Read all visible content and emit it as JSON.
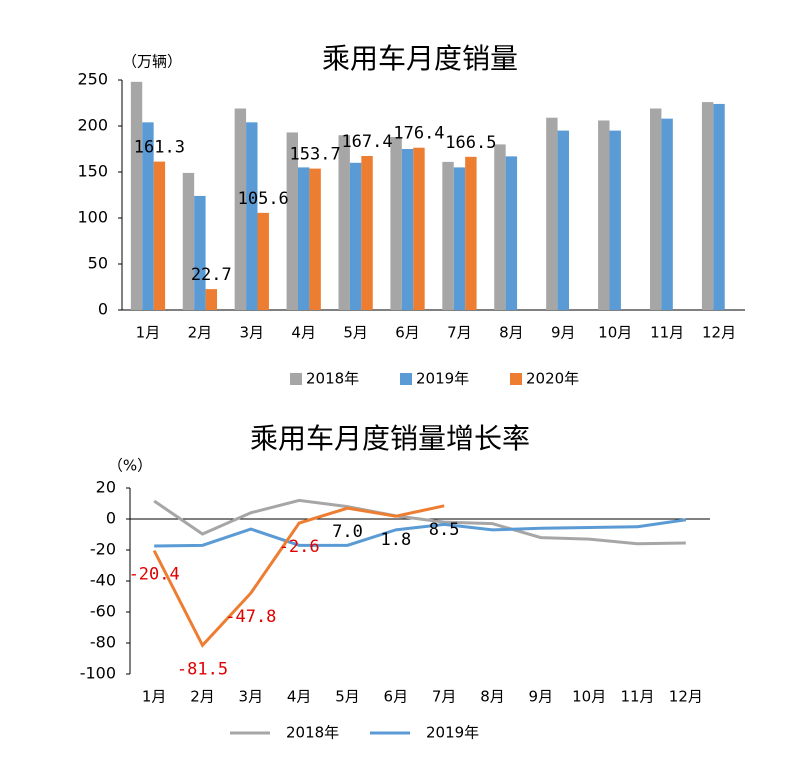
{
  "chart_data": [
    {
      "type": "bar",
      "title": "乘用车月度销量",
      "y_label": "（万辆）",
      "categories": [
        "1月",
        "2月",
        "3月",
        "4月",
        "5月",
        "6月",
        "7月",
        "8月",
        "9月",
        "10月",
        "11月",
        "12月"
      ],
      "series": [
        {
          "name": "2018年",
          "color": "#a6a6a6",
          "values": [
            248,
            149,
            219,
            193,
            190,
            188,
            161,
            180,
            209,
            206,
            219,
            226
          ]
        },
        {
          "name": "2019年",
          "color": "#5b9bd5",
          "values": [
            204,
            124,
            204,
            155,
            160,
            175,
            155,
            167,
            195,
            195,
            208,
            224
          ]
        },
        {
          "name": "2020年",
          "color": "#ed7d31",
          "data_labels": true,
          "values": [
            161.3,
            22.7,
            105.6,
            153.7,
            167.4,
            176.4,
            166.5,
            null,
            null,
            null,
            null,
            null
          ]
        }
      ],
      "ylim": [
        0,
        250
      ],
      "yticks": [
        0,
        50,
        100,
        150,
        200,
        250
      ]
    },
    {
      "type": "line",
      "title": "乘用车月度销量增长率",
      "y_label": "（%）",
      "categories": [
        "1月",
        "2月",
        "3月",
        "4月",
        "5月",
        "6月",
        "7月",
        "8月",
        "9月",
        "10月",
        "11月",
        "12月"
      ],
      "series": [
        {
          "name": "2018年",
          "color": "#a6a6a6",
          "values": [
            11.6,
            -9.7,
            4,
            12,
            8,
            2,
            -2,
            -3,
            -12,
            -13,
            -16,
            -15.5
          ]
        },
        {
          "name": "2019年",
          "color": "#5b9bd5",
          "values": [
            -17.4,
            -17,
            -6.5,
            -17,
            -17,
            -7,
            -3.5,
            -7,
            -6,
            -5.5,
            -5,
            -0.5
          ]
        },
        {
          "color": "#ed7d31",
          "negative_label_color": "#e00000",
          "values": [
            -20.4,
            -81.5,
            -47.8,
            -2.6,
            7.0,
            1.8,
            8.5,
            null,
            null,
            null,
            null,
            null
          ],
          "value_labels": [
            "-20.4",
            "-81.5",
            "-47.8",
            "-2.6",
            "7.0",
            "1.8",
            "8.5",
            null,
            null,
            null,
            null,
            null
          ]
        }
      ],
      "ylim": [
        -100,
        20
      ],
      "yticks": [
        20,
        0,
        -20,
        -40,
        -60,
        -80,
        -100
      ]
    }
  ]
}
